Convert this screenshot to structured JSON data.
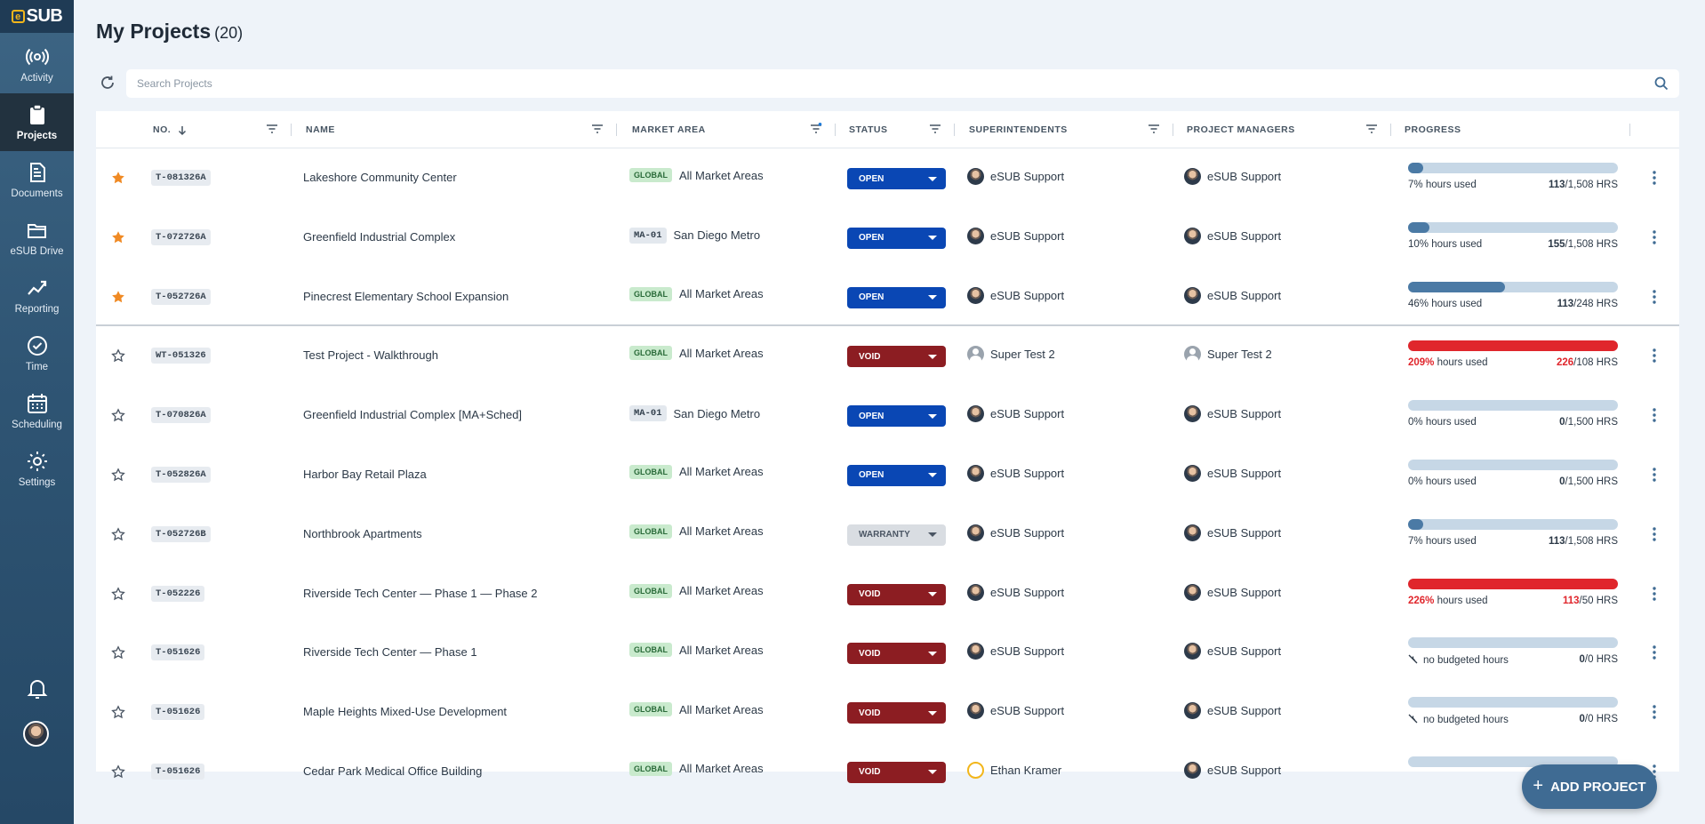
{
  "app": {
    "logo_text": "SUB",
    "logo_mark": "e"
  },
  "nav": [
    {
      "label": "Activity",
      "icon": "activity-icon"
    },
    {
      "label": "Projects",
      "icon": "clipboard-icon",
      "active": true
    },
    {
      "label": "Documents",
      "icon": "document-icon"
    },
    {
      "label": "eSUB Drive",
      "icon": "folder-icon"
    },
    {
      "label": "Reporting",
      "icon": "chart-icon"
    },
    {
      "label": "Time",
      "icon": "clock-icon"
    },
    {
      "label": "Scheduling",
      "icon": "calendar-icon"
    },
    {
      "label": "Settings",
      "icon": "gear-icon"
    }
  ],
  "page": {
    "title": "My Projects",
    "count": "(20)"
  },
  "search": {
    "placeholder": "Search Projects"
  },
  "columns": {
    "no": "NO.",
    "name": "NAME",
    "market": "MARKET AREA",
    "status": "STATUS",
    "superintendents": "SUPERINTENDENTS",
    "managers": "PROJECT MANAGERS",
    "progress": "PROGRESS"
  },
  "rows": [
    {
      "starred": true,
      "no": "T-081326A",
      "name": "Lakeshore Community Center",
      "market_tag": "GLOBAL",
      "market_tag_type": "global",
      "market": "All Market Areas",
      "status": "OPEN",
      "status_type": "open",
      "sup": "eSUB Support",
      "sup_av": "photo",
      "pm": "eSUB Support",
      "pm_av": "photo",
      "progress": 0.07,
      "pct": "7%",
      "pct_label": " hours used",
      "used": "113",
      "budget": "/1,508 HRS",
      "over": false,
      "divider": false
    },
    {
      "starred": true,
      "no": "T-072726A",
      "name": "Greenfield Industrial Complex",
      "market_tag": "MA-01",
      "market_tag_type": "ma",
      "market": "San Diego Metro",
      "status": "OPEN",
      "status_type": "open",
      "sup": "eSUB Support",
      "sup_av": "photo",
      "pm": "eSUB Support",
      "pm_av": "photo",
      "progress": 0.1,
      "pct": "10%",
      "pct_label": " hours used",
      "used": "155",
      "budget": "/1,508 HRS",
      "over": false,
      "divider": false
    },
    {
      "starred": true,
      "no": "T-052726A",
      "name": "Pinecrest Elementary School Expansion",
      "market_tag": "GLOBAL",
      "market_tag_type": "global",
      "market": "All Market Areas",
      "status": "OPEN",
      "status_type": "open",
      "sup": "eSUB Support",
      "sup_av": "photo",
      "pm": "eSUB Support",
      "pm_av": "photo",
      "progress": 0.46,
      "pct": "46%",
      "pct_label": " hours used",
      "used": "113",
      "budget": "/248 HRS",
      "over": false,
      "divider": true
    },
    {
      "starred": false,
      "no": "WT-051326",
      "name": "Test Project - Walkthrough",
      "market_tag": "GLOBAL",
      "market_tag_type": "global",
      "market": "All Market Areas",
      "status": "VOID",
      "status_type": "void",
      "sup": "Super Test 2",
      "sup_av": "gen",
      "pm": "Super Test 2",
      "pm_av": "gen",
      "progress": 1.0,
      "pct": "209%",
      "pct_label": " hours used",
      "used": "226",
      "budget": "/108 HRS",
      "over": true,
      "divider": false
    },
    {
      "starred": false,
      "no": "T-070826A",
      "name": "Greenfield Industrial Complex [MA+Sched]",
      "market_tag": "MA-01",
      "market_tag_type": "ma",
      "market": "San Diego Metro",
      "status": "OPEN",
      "status_type": "open",
      "sup": "eSUB Support",
      "sup_av": "photo",
      "pm": "eSUB Support",
      "pm_av": "photo",
      "progress": 0,
      "pct": "0%",
      "pct_label": " hours used",
      "used": "0",
      "budget": "/1,500 HRS",
      "over": false,
      "divider": false
    },
    {
      "starred": false,
      "no": "T-052826A",
      "name": "Harbor Bay Retail Plaza",
      "market_tag": "GLOBAL",
      "market_tag_type": "global",
      "market": "All Market Areas",
      "status": "OPEN",
      "status_type": "open",
      "sup": "eSUB Support",
      "sup_av": "photo",
      "pm": "eSUB Support",
      "pm_av": "photo",
      "progress": 0,
      "pct": "0%",
      "pct_label": " hours used",
      "used": "0",
      "budget": "/1,500 HRS",
      "over": false,
      "divider": false
    },
    {
      "starred": false,
      "no": "T-052726B",
      "name": "Northbrook Apartments",
      "market_tag": "GLOBAL",
      "market_tag_type": "global",
      "market": "All Market Areas",
      "status": "WARRANTY",
      "status_type": "warranty",
      "sup": "eSUB Support",
      "sup_av": "photo",
      "pm": "eSUB Support",
      "pm_av": "photo",
      "progress": 0.07,
      "pct": "7%",
      "pct_label": " hours used",
      "used": "113",
      "budget": "/1,508 HRS",
      "over": false,
      "divider": false
    },
    {
      "starred": false,
      "no": "T-052226",
      "name": "Riverside Tech Center — Phase 1 — Phase 2",
      "market_tag": "GLOBAL",
      "market_tag_type": "global",
      "market": "All Market Areas",
      "status": "VOID",
      "status_type": "void",
      "sup": "eSUB Support",
      "sup_av": "photo",
      "pm": "eSUB Support",
      "pm_av": "photo",
      "progress": 1.0,
      "pct": "226%",
      "pct_label": " hours used",
      "used": "113",
      "budget": "/50 HRS",
      "over": true,
      "divider": false
    },
    {
      "starred": false,
      "no": "T-051626",
      "name": "Riverside Tech Center — Phase 1",
      "market_tag": "GLOBAL",
      "market_tag_type": "global",
      "market": "All Market Areas",
      "status": "VOID",
      "status_type": "void",
      "sup": "eSUB Support",
      "sup_av": "photo",
      "pm": "eSUB Support",
      "pm_av": "photo",
      "progress": 0,
      "pct": "",
      "pct_label": "no budgeted hours",
      "nobudget": true,
      "used": "0",
      "budget": "/0 HRS",
      "over": false,
      "divider": false
    },
    {
      "starred": false,
      "no": "T-051626",
      "name": "Maple Heights Mixed-Use Development",
      "market_tag": "GLOBAL",
      "market_tag_type": "global",
      "market": "All Market Areas",
      "status": "VOID",
      "status_type": "void",
      "sup": "eSUB Support",
      "sup_av": "photo",
      "pm": "eSUB Support",
      "pm_av": "photo",
      "progress": 0,
      "pct": "",
      "pct_label": "no budgeted hours",
      "nobudget": true,
      "used": "0",
      "budget": "/0 HRS",
      "over": false,
      "divider": false
    },
    {
      "starred": false,
      "no": "T-051626",
      "name": "Cedar Park Medical Office Building",
      "market_tag": "GLOBAL",
      "market_tag_type": "global",
      "market": "All Market Areas",
      "status": "VOID",
      "status_type": "void",
      "sup": "Ethan Kramer",
      "sup_av": "yellow",
      "pm": "eSUB Support",
      "pm_av": "photo",
      "progress": 0,
      "pct": "",
      "pct_label": "",
      "used": "",
      "budget": "",
      "over": false,
      "divider": false
    }
  ],
  "fab": {
    "label": "ADD PROJECT"
  }
}
